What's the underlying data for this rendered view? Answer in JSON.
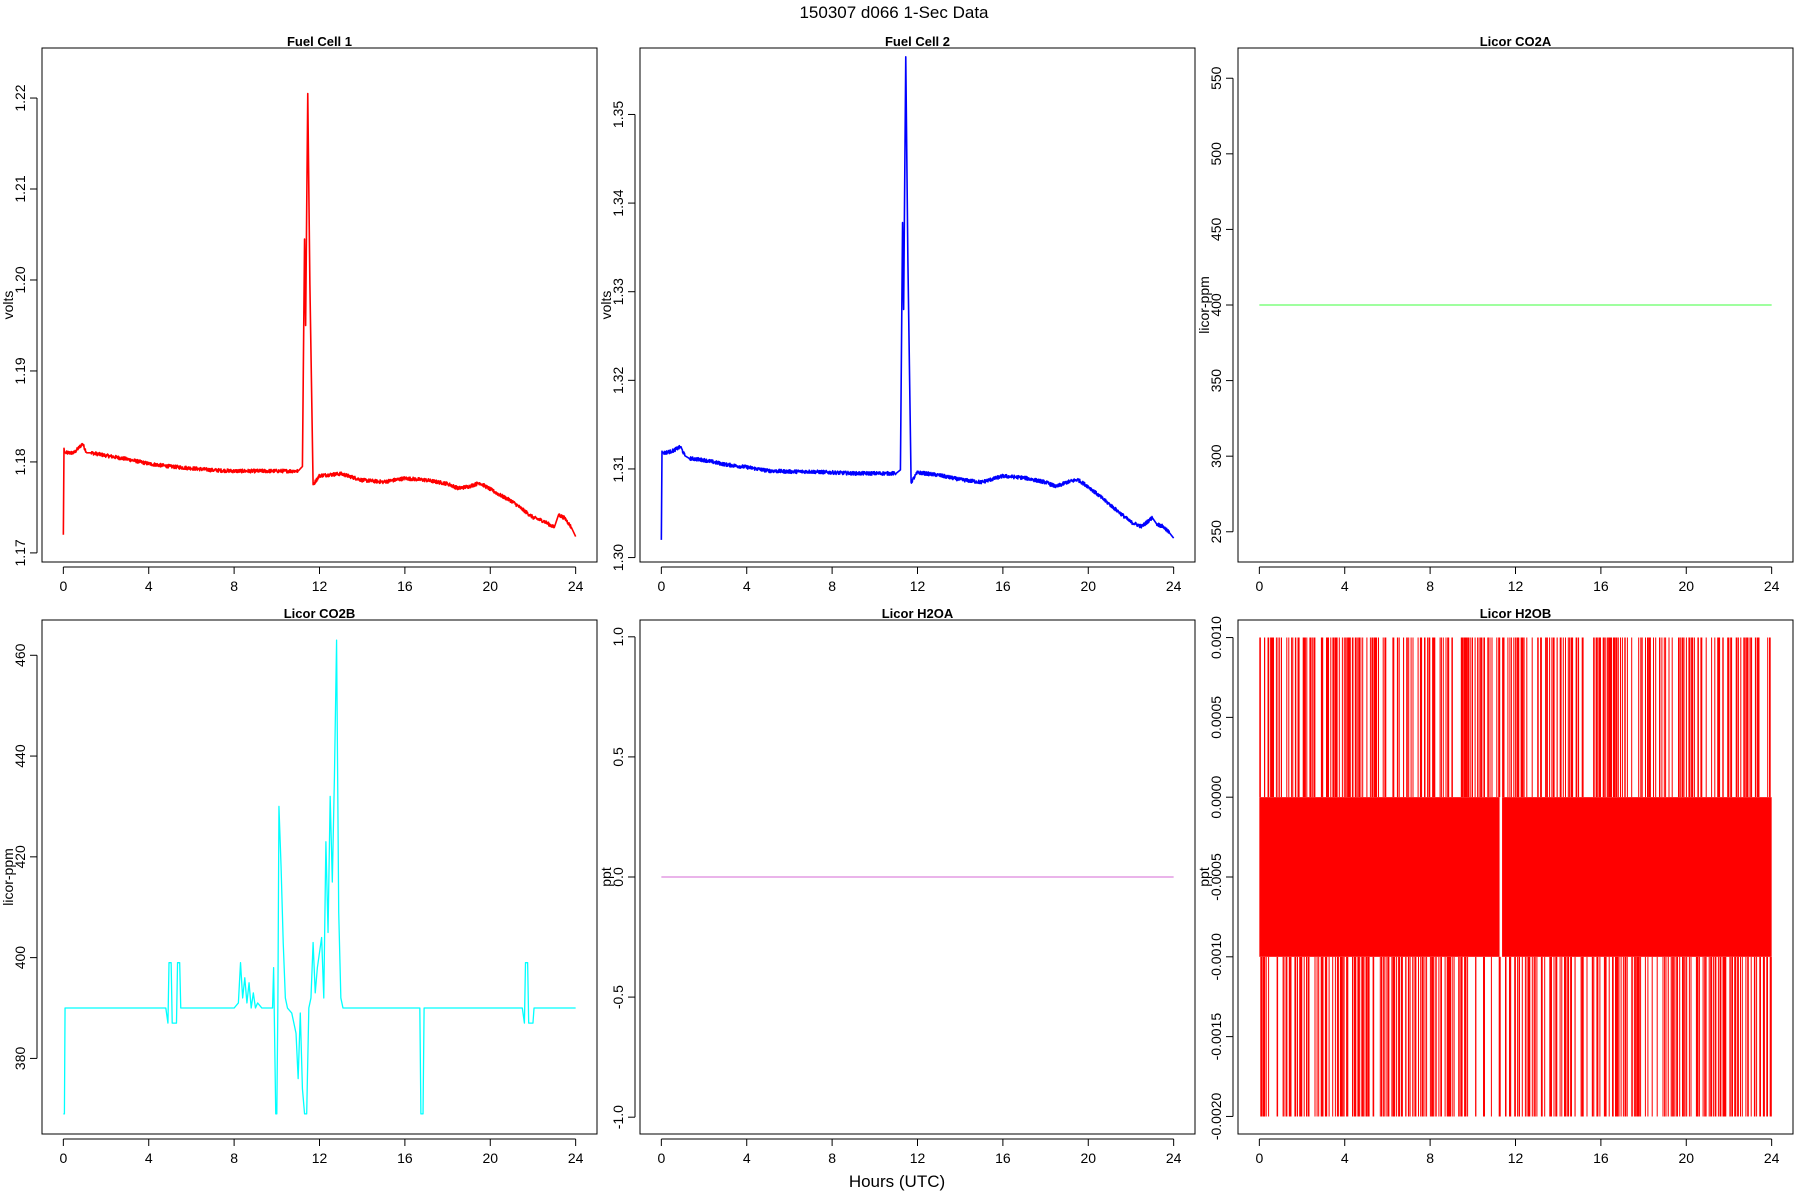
{
  "title": "150307   d066   1-Sec Data",
  "xlabel": "Hours (UTC)",
  "chart_data": [
    {
      "type": "line",
      "title": "Fuel Cell 1",
      "ylabel": "volts",
      "color": "#ff0000",
      "xlim": [
        -1,
        25
      ],
      "ylim": [
        1.169,
        1.2255
      ],
      "xticks": [
        0,
        4,
        8,
        12,
        16,
        20,
        24
      ],
      "yticks": [
        1.17,
        1.18,
        1.19,
        1.2,
        1.21,
        1.22
      ],
      "yticklabels": [
        "1.17",
        "1.18",
        "1.19",
        "1.20",
        "1.21",
        "1.22"
      ],
      "series": [
        {
          "x": [
            0.0,
            0.03,
            0.06,
            0.1,
            0.5,
            0.9,
            1.1,
            1.3,
            2,
            3,
            4,
            5,
            6,
            7,
            8,
            9,
            10,
            10.5,
            11.0,
            11.2,
            11.3,
            11.35,
            11.45,
            11.55,
            11.7,
            12,
            13,
            14,
            15,
            16,
            17,
            18,
            18.5,
            19,
            19.5,
            20,
            20.5,
            21,
            21.5,
            22,
            22.5,
            23,
            23.2,
            23.5,
            23.8,
            24
          ],
          "y": [
            1.172,
            1.1815,
            1.181,
            1.181,
            1.181,
            1.182,
            1.181,
            1.181,
            1.1807,
            1.1803,
            1.1798,
            1.1795,
            1.1793,
            1.1791,
            1.179,
            1.179,
            1.179,
            1.179,
            1.179,
            1.1795,
            1.2045,
            1.195,
            1.2205,
            1.1995,
            1.1775,
            1.1785,
            1.1787,
            1.178,
            1.1778,
            1.1782,
            1.178,
            1.1776,
            1.1771,
            1.1773,
            1.1777,
            1.177,
            1.1763,
            1.1757,
            1.1748,
            1.1739,
            1.1735,
            1.1728,
            1.1742,
            1.1738,
            1.1728,
            1.1718
          ]
        }
      ]
    },
    {
      "type": "line",
      "title": "Fuel Cell 2",
      "ylabel": "volts",
      "color": "#0000ff",
      "xlim": [
        -1,
        25
      ],
      "ylim": [
        1.2995,
        1.3575
      ],
      "xticks": [
        0,
        4,
        8,
        12,
        16,
        20,
        24
      ],
      "yticks": [
        1.3,
        1.31,
        1.32,
        1.33,
        1.34,
        1.35
      ],
      "yticklabels": [
        "1.30",
        "1.31",
        "1.32",
        "1.33",
        "1.34",
        "1.35"
      ],
      "series": [
        {
          "x": [
            0.0,
            0.03,
            0.06,
            0.1,
            0.5,
            0.9,
            1.1,
            1.3,
            2,
            3,
            4,
            5,
            6,
            7,
            8,
            9,
            10,
            10.5,
            11.0,
            11.2,
            11.3,
            11.35,
            11.45,
            11.55,
            11.7,
            12,
            13,
            14,
            15,
            16,
            17,
            18,
            18.5,
            19,
            19.5,
            20,
            20.5,
            21,
            21.5,
            22,
            22.5,
            23,
            23.2,
            23.5,
            23.8,
            24
          ],
          "y": [
            1.302,
            1.312,
            1.3118,
            1.3118,
            1.312,
            1.3125,
            1.3115,
            1.3112,
            1.311,
            1.3105,
            1.3102,
            1.3098,
            1.3097,
            1.3097,
            1.3096,
            1.3095,
            1.3095,
            1.3095,
            1.3095,
            1.3099,
            1.3378,
            1.328,
            1.3565,
            1.3335,
            1.3085,
            1.3096,
            1.3093,
            1.3088,
            1.3085,
            1.3092,
            1.309,
            1.3085,
            1.308,
            1.3085,
            1.3088,
            1.308,
            1.307,
            1.306,
            1.305,
            1.304,
            1.3035,
            1.3045,
            1.3038,
            1.3035,
            1.3028,
            1.3022
          ]
        }
      ]
    },
    {
      "type": "line",
      "title": "Licor CO2A",
      "ylabel": "licor-ppm",
      "color": "#66ff66",
      "xlim": [
        -1,
        25
      ],
      "ylim": [
        230,
        570
      ],
      "xticks": [
        0,
        4,
        8,
        12,
        16,
        20,
        24
      ],
      "yticks": [
        250,
        300,
        350,
        400,
        450,
        500,
        550
      ],
      "yticklabels": [
        "250",
        "300",
        "350",
        "400",
        "450",
        "500",
        "550"
      ],
      "series": [
        {
          "x": [
            0,
            24
          ],
          "y": [
            400,
            400
          ]
        }
      ]
    },
    {
      "type": "line",
      "title": "Licor CO2B",
      "ylabel": "licor-ppm",
      "color": "#00ffff",
      "xlim": [
        -1,
        25
      ],
      "ylim": [
        365,
        467
      ],
      "xticks": [
        0,
        4,
        8,
        12,
        16,
        20,
        24
      ],
      "yticks": [
        380,
        400,
        420,
        440,
        460
      ],
      "yticklabels": [
        "380",
        "400",
        "420",
        "440",
        "460"
      ],
      "series": [
        {
          "x": [
            0.0,
            0.05,
            0.08,
            0.12,
            4.8,
            4.9,
            4.95,
            5.05,
            5.1,
            5.3,
            5.35,
            5.45,
            5.5,
            8.0,
            8.2,
            8.3,
            8.4,
            8.5,
            8.6,
            8.7,
            8.8,
            8.9,
            9.0,
            9.1,
            9.3,
            9.5,
            9.8,
            9.85,
            9.95,
            10.0,
            10.05,
            10.1,
            10.2,
            10.3,
            10.4,
            10.5,
            10.7,
            10.9,
            11.0,
            11.1,
            11.2,
            11.3,
            11.4,
            11.5,
            11.6,
            11.7,
            11.8,
            11.9,
            12.0,
            12.1,
            12.2,
            12.3,
            12.4,
            12.5,
            12.6,
            12.7,
            12.8,
            12.9,
            13.0,
            13.1,
            13.2,
            13.3,
            13.4,
            13.5,
            16.6,
            16.7,
            16.75,
            16.85,
            16.9,
            21.5,
            21.6,
            21.65,
            21.75,
            21.8,
            22.0,
            22.05,
            22.2,
            24.0
          ],
          "y": [
            369,
            369,
            390,
            390,
            390,
            387,
            399,
            399,
            387,
            387,
            399,
            399,
            390,
            390,
            391,
            399,
            392,
            396,
            391,
            395,
            390,
            393,
            390,
            391,
            390,
            390,
            390,
            398,
            369,
            369,
            391,
            430,
            418,
            403,
            392,
            390,
            389,
            385,
            376,
            389,
            374,
            369,
            369,
            390,
            392,
            403,
            393,
            398,
            401,
            404,
            392,
            423,
            405,
            432,
            415,
            436,
            463,
            409,
            392,
            390,
            390,
            390,
            390,
            390,
            390,
            390,
            369,
            369,
            390,
            390,
            387,
            399,
            399,
            387,
            387,
            390,
            390,
            390
          ]
        }
      ]
    },
    {
      "type": "line",
      "title": "Licor H2OA",
      "ylabel": "ppt",
      "color": "#dd88dd",
      "xlim": [
        -1,
        25
      ],
      "ylim": [
        -1.07,
        1.07
      ],
      "xticks": [
        0,
        4,
        8,
        12,
        16,
        20,
        24
      ],
      "yticks": [
        -1.0,
        -0.5,
        0.0,
        0.5,
        1.0
      ],
      "yticklabels": [
        "-1.0",
        "-0.5",
        "0.0",
        "0.5",
        "1.0"
      ],
      "series": [
        {
          "x": [
            0,
            24
          ],
          "y": [
            0,
            0
          ]
        }
      ]
    },
    {
      "type": "line",
      "title": "Licor H2OB",
      "ylabel": "ppt",
      "color": "#ff0000",
      "xlim": [
        -1,
        25
      ],
      "ylim": [
        -0.00211,
        0.00111
      ],
      "xticks": [
        0,
        4,
        8,
        12,
        16,
        20,
        24
      ],
      "yticks": [
        -0.002,
        -0.0015,
        -0.001,
        -0.0005,
        0.0,
        0.0005,
        0.001
      ],
      "yticklabels": [
        "-0.0020",
        "-0.0015",
        "-0.0010",
        "-0.0005",
        "0.0000",
        "0.0005",
        "0.0010"
      ],
      "series": [
        {
          "x_range": [
            0,
            24
          ],
          "levels": [
            -0.002,
            -0.001,
            0.0,
            0.001
          ],
          "band": [
            -0.001,
            0.0
          ],
          "gap_at": 11.3
        }
      ]
    }
  ]
}
